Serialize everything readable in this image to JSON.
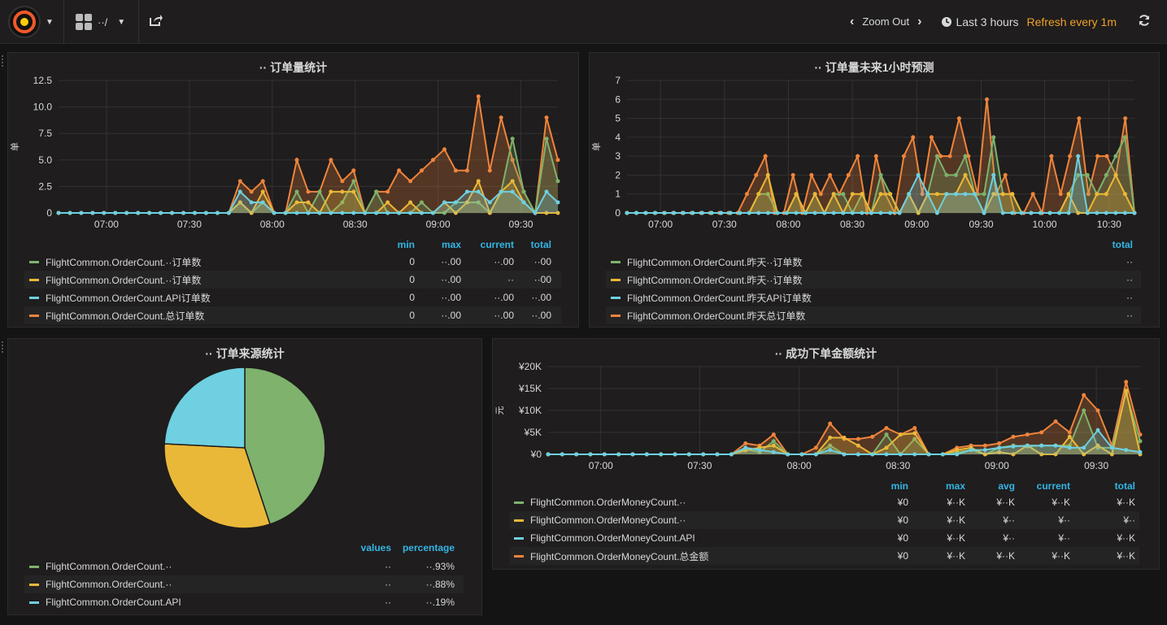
{
  "topbar": {
    "zoom_out": "Zoom Out",
    "time_range": "Last 3 hours",
    "refresh": "Refresh every 1m",
    "dashboard_name": "··/"
  },
  "panels": [
    {
      "title": "·· 订单量统计",
      "ylabel": "单",
      "y_ticks": [
        "12.5",
        "10.0",
        "7.5",
        "5.0",
        "2.5",
        "0"
      ],
      "x_ticks": [
        "07:00",
        "07:30",
        "08:00",
        "08:30",
        "09:00",
        "09:30"
      ],
      "columns": [
        "min",
        "max",
        "current",
        "total"
      ],
      "legend": [
        {
          "name": "FlightCommon.OrderCount.··订单数",
          "color": "#7eb26d",
          "values": [
            "0",
            "··.00",
            "··.00",
            "··00"
          ]
        },
        {
          "name": "FlightCommon.OrderCount.··订单数",
          "color": "#eab839",
          "values": [
            "0",
            "··.00",
            "··",
            "··00"
          ]
        },
        {
          "name": "FlightCommon.OrderCount.API订单数",
          "color": "#6ed0e0",
          "values": [
            "0",
            "··.00",
            "··.00",
            "··.00"
          ]
        },
        {
          "name": "FlightCommon.OrderCount.总订单数",
          "color": "#ef843c",
          "values": [
            "0",
            "··.00",
            "··.00",
            "··.00"
          ]
        }
      ]
    },
    {
      "title": "·· 订单量未来1小时预测",
      "ylabel": "单",
      "y_ticks": [
        "7",
        "6",
        "5",
        "4",
        "3",
        "2",
        "1",
        "0"
      ],
      "x_ticks": [
        "07:00",
        "07:30",
        "08:00",
        "08:30",
        "09:00",
        "09:30",
        "10:00",
        "10:30"
      ],
      "columns": [
        "total"
      ],
      "legend": [
        {
          "name": "FlightCommon.OrderCount.昨天··订单数",
          "color": "#7eb26d",
          "values": [
            "··"
          ]
        },
        {
          "name": "FlightCommon.OrderCount.昨天··订单数",
          "color": "#eab839",
          "values": [
            "··"
          ]
        },
        {
          "name": "FlightCommon.OrderCount.昨天API订单数",
          "color": "#6ed0e0",
          "values": [
            "··"
          ]
        },
        {
          "name": "FlightCommon.OrderCount.昨天总订单数",
          "color": "#ef843c",
          "values": [
            "··"
          ]
        }
      ]
    },
    {
      "title": "·· 订单来源统计",
      "columns": [
        "values",
        "percentage"
      ],
      "legend": [
        {
          "name": "FlightCommon.OrderCount.··",
          "color": "#7eb26d",
          "values": [
            "··",
            "··.93%"
          ]
        },
        {
          "name": "FlightCommon.OrderCount.··",
          "color": "#eab839",
          "values": [
            "··",
            "··.88%"
          ]
        },
        {
          "name": "FlightCommon.OrderCount.API",
          "color": "#6ed0e0",
          "values": [
            "··",
            "··.19%"
          ]
        }
      ]
    },
    {
      "title": "·· 成功下单金额统计",
      "ylabel": "元",
      "y_ticks": [
        "¥20K",
        "¥15K",
        "¥10K",
        "¥5K",
        "¥0"
      ],
      "x_ticks": [
        "07:00",
        "07:30",
        "08:00",
        "08:30",
        "09:00",
        "09:30"
      ],
      "columns": [
        "min",
        "max",
        "avg",
        "current",
        "total"
      ],
      "legend": [
        {
          "name": "FlightCommon.OrderMoneyCount.··",
          "color": "#7eb26d",
          "values": [
            "¥0",
            "¥··K",
            "¥··K",
            "¥··K",
            "¥··K"
          ]
        },
        {
          "name": "FlightCommon.OrderMoneyCount.··",
          "color": "#eab839",
          "values": [
            "¥0",
            "¥··K",
            "¥··",
            "¥··",
            "¥··"
          ]
        },
        {
          "name": "FlightCommon.OrderMoneyCount.API",
          "color": "#6ed0e0",
          "values": [
            "¥0",
            "¥··K",
            "¥··",
            "¥··",
            "¥··K"
          ]
        },
        {
          "name": "FlightCommon.OrderMoneyCount.总金额",
          "color": "#ef843c",
          "values": [
            "¥0",
            "¥··K",
            "¥··K",
            "¥··K",
            "¥··K"
          ]
        }
      ]
    }
  ],
  "chart_data": [
    {
      "type": "area",
      "title": "·· 订单量统计",
      "ylabel": "单",
      "ylim": [
        0,
        12.5
      ],
      "x": [
        "06:44",
        "06:48",
        "06:52",
        "06:56",
        "07:00",
        "07:04",
        "07:08",
        "07:12",
        "07:16",
        "07:20",
        "07:24",
        "07:28",
        "07:32",
        "07:36",
        "07:40",
        "07:44",
        "07:48",
        "07:52",
        "07:56",
        "08:00",
        "08:04",
        "08:08",
        "08:12",
        "08:16",
        "08:20",
        "08:24",
        "08:28",
        "08:32",
        "08:36",
        "08:40",
        "08:44",
        "08:48",
        "08:52",
        "08:56",
        "09:00",
        "09:04",
        "09:08",
        "09:12",
        "09:16",
        "09:20",
        "09:24",
        "09:28",
        "09:32",
        "09:36",
        "09:40"
      ],
      "series": [
        {
          "name": "FlightCommon.OrderCount.··订单数",
          "values": [
            0,
            0,
            0,
            0,
            0,
            0,
            0,
            0,
            0,
            0,
            0,
            0,
            0,
            0,
            0,
            0,
            1,
            0,
            1,
            0,
            0,
            2,
            0,
            2,
            0,
            1,
            3,
            0,
            2,
            0,
            0,
            0,
            1,
            0,
            0,
            1,
            1,
            1,
            0,
            2,
            7,
            2,
            0,
            7,
            3
          ]
        },
        {
          "name": "FlightCommon.OrderCount.··订单数",
          "values": [
            0,
            0,
            0,
            0,
            0,
            0,
            0,
            0,
            0,
            0,
            0,
            0,
            0,
            0,
            0,
            0,
            1,
            0,
            2,
            0,
            0,
            1,
            1,
            0,
            2,
            2,
            2,
            0,
            0,
            1,
            0,
            1,
            0,
            0,
            1,
            0,
            1,
            3,
            0,
            2,
            3,
            1,
            0,
            0,
            0
          ]
        },
        {
          "name": "FlightCommon.OrderCount.API订单数",
          "values": [
            0,
            0,
            0,
            0,
            0,
            0,
            0,
            0,
            0,
            0,
            0,
            0,
            0,
            0,
            0,
            0,
            2,
            1,
            1,
            0,
            0,
            0,
            0,
            0,
            0,
            0,
            0,
            0,
            0,
            0,
            0,
            0,
            0,
            0,
            1,
            1,
            2,
            2,
            1,
            2,
            2,
            1,
            0,
            2,
            1
          ]
        },
        {
          "name": "FlightCommon.OrderCount.总订单数",
          "values": [
            0,
            0,
            0,
            0,
            0,
            0,
            0,
            0,
            0,
            0,
            0,
            0,
            0,
            0,
            0,
            0,
            3,
            2,
            3,
            0,
            0,
            5,
            2,
            2,
            5,
            3,
            4,
            0,
            2,
            2,
            4,
            3,
            4,
            5,
            6,
            4,
            4,
            11,
            4,
            9,
            5,
            2,
            0,
            9,
            5
          ]
        }
      ]
    },
    {
      "type": "area",
      "title": "·· 订单量未来1小时预测",
      "ylabel": "单",
      "ylim": [
        0,
        7
      ],
      "x_ticks": [
        "07:00",
        "07:30",
        "08:00",
        "08:30",
        "09:00",
        "09:30",
        "10:00",
        "10:30"
      ],
      "series": [
        {
          "name": "FlightCommon.OrderCount.昨天··订单数",
          "values": [
            0,
            0,
            0,
            0,
            0,
            0,
            0,
            0,
            0,
            0,
            0,
            0,
            0,
            0,
            1,
            1,
            0,
            0,
            1,
            0,
            1,
            0,
            1,
            1,
            0,
            1,
            0,
            2,
            1,
            0,
            1,
            0,
            1,
            3,
            2,
            2,
            3,
            1,
            1,
            4,
            1,
            1,
            0,
            0,
            0,
            0,
            0,
            1,
            2,
            2,
            1,
            2,
            3,
            4,
            0
          ]
        },
        {
          "name": "FlightCommon.OrderCount.昨天··订单数",
          "values": [
            0,
            0,
            0,
            0,
            0,
            0,
            0,
            0,
            0,
            0,
            0,
            0,
            0,
            0,
            1,
            2,
            0,
            0,
            1,
            0,
            1,
            0,
            1,
            0,
            1,
            1,
            0,
            1,
            1,
            0,
            1,
            0,
            1,
            1,
            1,
            1,
            2,
            1,
            0,
            1,
            1,
            1,
            0,
            0,
            0,
            0,
            0,
            1,
            0,
            0,
            1,
            1,
            2,
            1,
            0
          ]
        },
        {
          "name": "FlightCommon.OrderCount.昨天API订单数",
          "values": [
            0,
            0,
            0,
            0,
            0,
            0,
            0,
            0,
            0,
            0,
            0,
            0,
            0,
            0,
            0,
            0,
            0,
            0,
            0,
            0,
            0,
            0,
            0,
            0,
            0,
            0,
            0,
            0,
            0,
            0,
            1,
            2,
            1,
            0,
            1,
            1,
            1,
            1,
            0,
            2,
            0,
            0,
            0,
            0,
            0,
            0,
            0,
            0,
            3,
            0,
            0,
            0,
            0,
            0,
            0
          ]
        },
        {
          "name": "FlightCommon.OrderCount.昨天总订单数",
          "values": [
            0,
            0,
            0,
            0,
            0,
            0,
            0,
            0,
            0,
            0,
            0,
            0,
            0,
            1,
            2,
            3,
            0,
            0,
            2,
            0,
            2,
            1,
            2,
            1,
            2,
            3,
            0,
            3,
            1,
            0,
            3,
            4,
            1,
            4,
            3,
            3,
            5,
            3,
            1,
            6,
            1,
            2,
            0,
            0,
            1,
            0,
            3,
            1,
            3,
            5,
            1,
            3,
            3,
            2,
            5,
            0
          ]
        }
      ]
    },
    {
      "type": "pie",
      "title": "·· 订单来源统计",
      "categories": [
        "FlightCommon.OrderCount.··",
        "FlightCommon.OrderCount.··",
        "FlightCommon.OrderCount.API"
      ],
      "values": [
        44.93,
        30.88,
        24.19
      ]
    },
    {
      "type": "area",
      "title": "·· 成功下单金额统计",
      "ylabel": "元",
      "ylim": [
        0,
        20000
      ],
      "x_ticks": [
        "07:00",
        "07:30",
        "08:00",
        "08:30",
        "09:00",
        "09:30"
      ],
      "series": [
        {
          "name": "FlightCommon.OrderMoneyCount.··",
          "values": [
            0,
            0,
            0,
            0,
            0,
            0,
            0,
            0,
            0,
            0,
            0,
            0,
            0,
            0,
            1200,
            500,
            3000,
            0,
            0,
            0,
            2000,
            0,
            0,
            0,
            4500,
            0,
            3500,
            0,
            0,
            500,
            1000,
            0,
            1500,
            2000,
            1800,
            2000,
            2000,
            2000,
            10000,
            1500,
            1500,
            14000,
            3000
          ]
        },
        {
          "name": "FlightCommon.OrderMoneyCount.··",
          "values": [
            0,
            0,
            0,
            0,
            0,
            0,
            0,
            0,
            0,
            0,
            0,
            0,
            0,
            0,
            900,
            1500,
            2000,
            0,
            0,
            0,
            3800,
            3800,
            2000,
            0,
            1500,
            4500,
            4800,
            0,
            0,
            1000,
            1500,
            0,
            500,
            0,
            2000,
            0,
            0,
            4000,
            0,
            2000,
            0,
            14500,
            0
          ]
        },
        {
          "name": "FlightCommon.OrderMoneyCount.API",
          "values": [
            0,
            0,
            0,
            0,
            0,
            0,
            0,
            0,
            0,
            0,
            0,
            0,
            0,
            0,
            1500,
            1000,
            500,
            0,
            0,
            0,
            1000,
            0,
            0,
            0,
            0,
            0,
            0,
            0,
            0,
            0,
            1000,
            1000,
            1500,
            1800,
            2000,
            2000,
            2000,
            1500,
            1500,
            5500,
            1500,
            1000,
            500
          ]
        },
        {
          "name": "FlightCommon.OrderMoneyCount.总金额",
          "values": [
            0,
            0,
            0,
            0,
            0,
            0,
            0,
            0,
            0,
            0,
            0,
            0,
            0,
            0,
            2500,
            2000,
            4500,
            0,
            0,
            1500,
            7000,
            3500,
            3500,
            4000,
            6000,
            4500,
            6000,
            0,
            0,
            1500,
            2000,
            2000,
            2500,
            4000,
            4500,
            5000,
            7500,
            5000,
            13500,
            10000,
            2000,
            16500,
            4500
          ]
        }
      ]
    }
  ]
}
